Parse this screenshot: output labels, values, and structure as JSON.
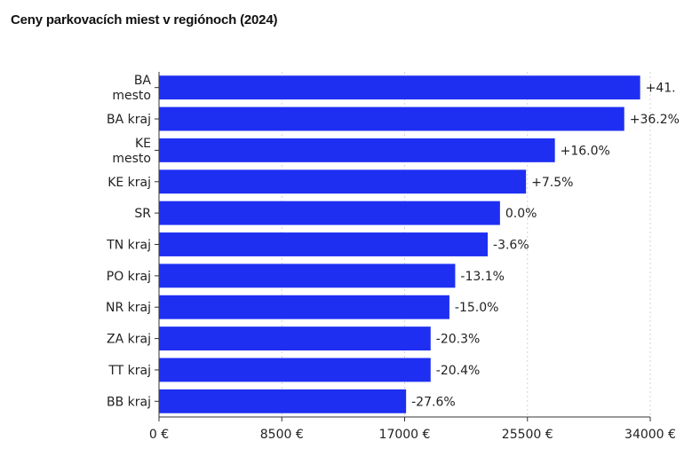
{
  "chart_data": {
    "type": "bar",
    "orientation": "horizontal",
    "title": "Ceny parkovacích miest v regiónoch (2024)",
    "xlabel": "",
    "ylabel": "",
    "categories": [
      [
        "BA",
        "mesto"
      ],
      [
        "BA kraj"
      ],
      [
        "KE",
        "mesto"
      ],
      [
        "KE kraj"
      ],
      [
        "SR"
      ],
      [
        "TN kraj"
      ],
      [
        "PO kraj"
      ],
      [
        "NR kraj"
      ],
      [
        "ZA kraj"
      ],
      [
        "TT kraj"
      ],
      [
        "BB kraj"
      ]
    ],
    "values": [
      33300,
      32200,
      27400,
      25400,
      23600,
      22750,
      20500,
      20100,
      18800,
      18800,
      17100
    ],
    "data_labels": [
      "+41.",
      "+36.2%",
      "+16.0%",
      "+7.5%",
      "0.0%",
      "-3.6%",
      "-13.1%",
      "-15.0%",
      "-20.3%",
      "-20.4%",
      "-27.6%"
    ],
    "xticks": [
      "0 €",
      "8500 €",
      "17000 €",
      "25500 €",
      "34000 €"
    ],
    "xtick_values": [
      0,
      8500,
      17000,
      25500,
      34000
    ],
    "xlim": [
      0,
      34000
    ],
    "grid": true,
    "bar_color": "#1e2ff2",
    "grid_color": "#d3d3d3"
  }
}
